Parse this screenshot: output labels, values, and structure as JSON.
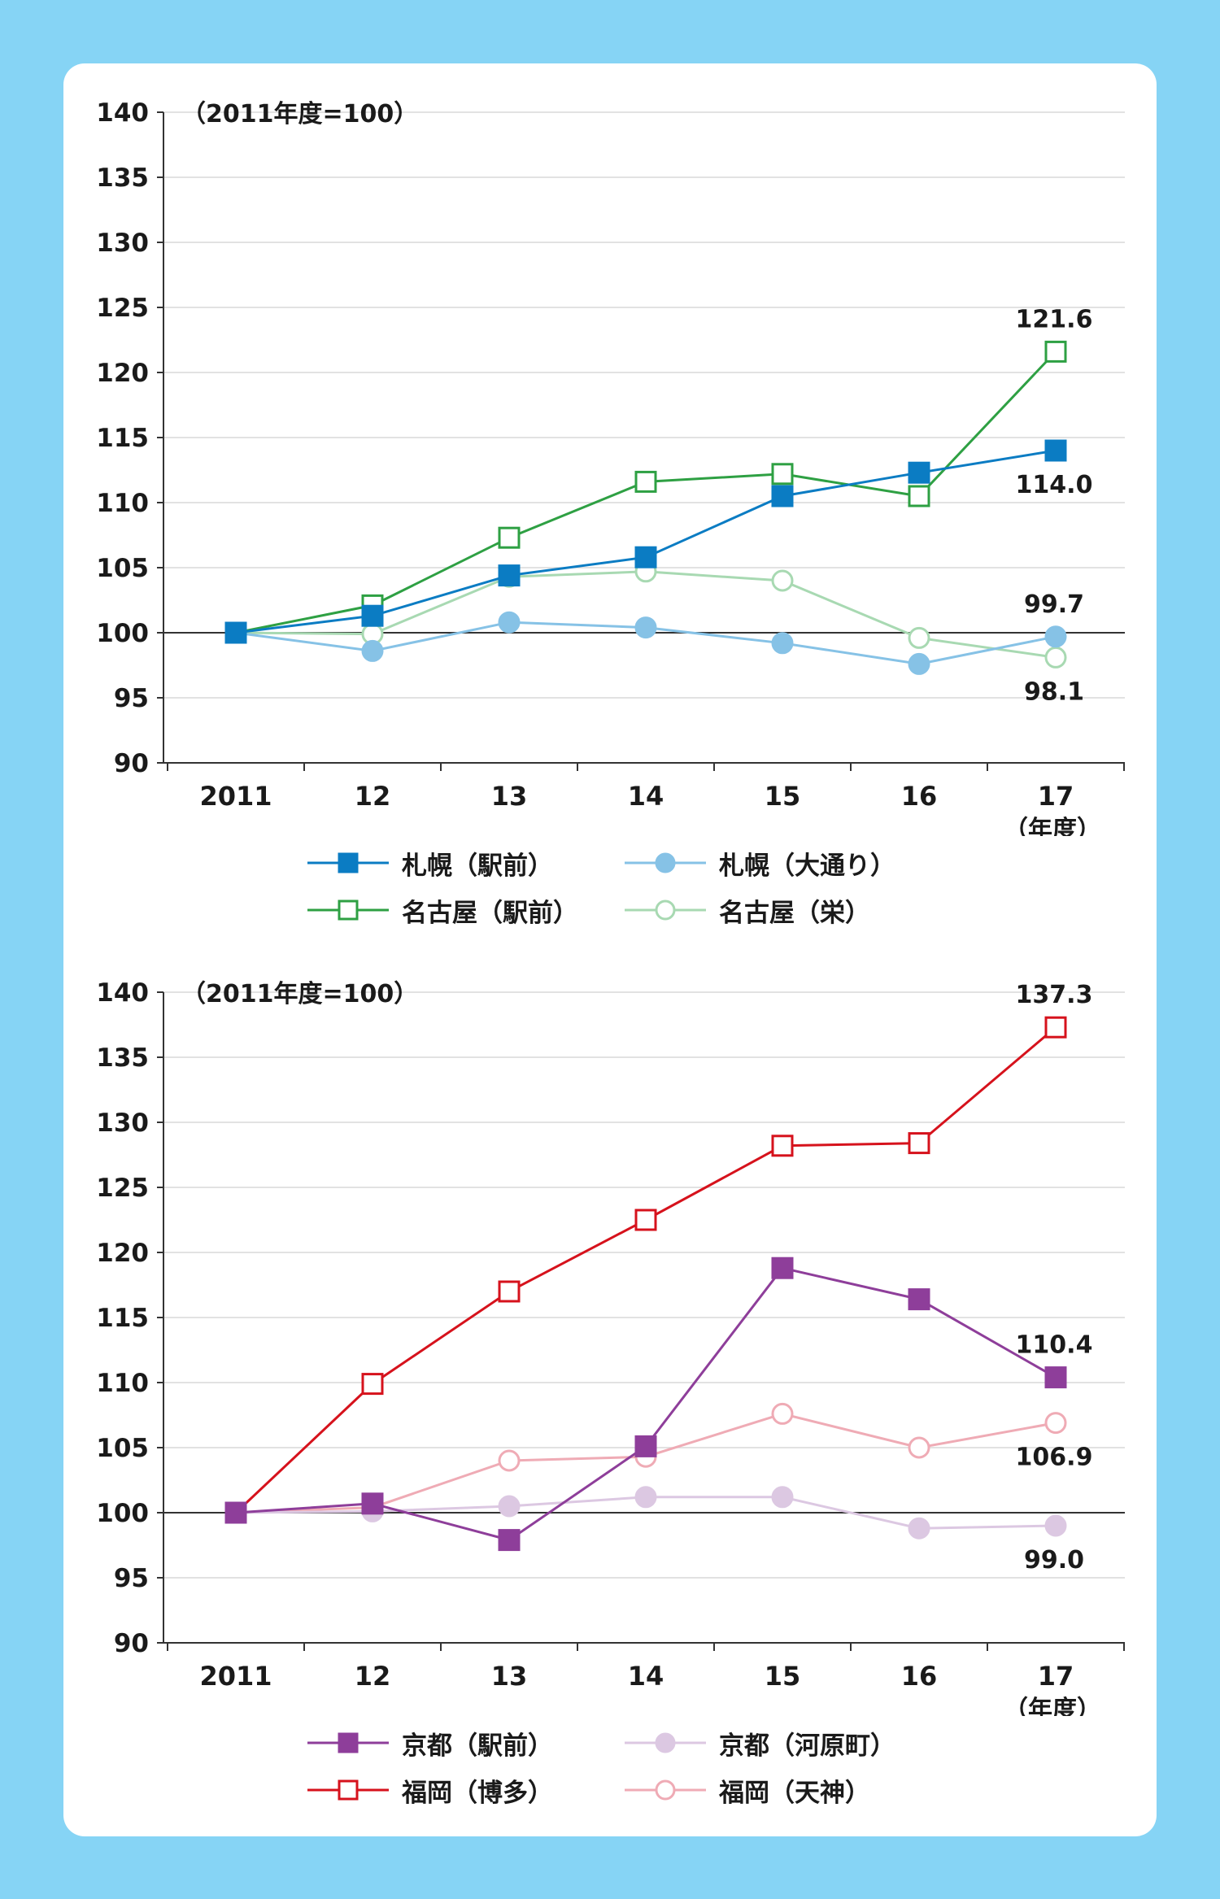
{
  "chart_data": [
    {
      "type": "line",
      "title": "",
      "unit_note": "（2011年度=100）",
      "x_unit_label": "（年度）",
      "categories": [
        "2011",
        "12",
        "13",
        "14",
        "15",
        "16",
        "17"
      ],
      "yticks": [
        "140",
        "135",
        "130",
        "125",
        "120",
        "115",
        "110",
        "105",
        "100",
        "95",
        "90"
      ],
      "ylim": [
        90,
        140
      ],
      "grid": true,
      "series": [
        {
          "name": "札幌（駅前）",
          "color": "#0b7cc3",
          "marker": "square",
          "filled": true,
          "values": [
            100,
            101.3,
            104.4,
            105.8,
            110.5,
            112.3,
            114.0
          ]
        },
        {
          "name": "札幌（大通り）",
          "color": "#86c2e6",
          "marker": "circle",
          "filled": true,
          "values": [
            100,
            98.6,
            100.8,
            100.4,
            99.2,
            97.6,
            99.7
          ]
        },
        {
          "name": "名古屋（駅前）",
          "color": "#2ea043",
          "marker": "square",
          "filled": false,
          "values": [
            100,
            102.1,
            107.3,
            111.6,
            112.2,
            110.5,
            121.6
          ]
        },
        {
          "name": "名古屋（栄）",
          "color": "#a8d9b2",
          "marker": "circle",
          "filled": false,
          "values": [
            100,
            99.9,
            104.3,
            104.7,
            104.0,
            99.6,
            98.1
          ]
        }
      ],
      "data_labels": [
        {
          "series": 2,
          "point": 6,
          "text": "121.6",
          "pos": "above"
        },
        {
          "series": 0,
          "point": 6,
          "text": "114.0",
          "pos": "below"
        },
        {
          "series": 1,
          "point": 6,
          "text": "99.7",
          "pos": "above"
        },
        {
          "series": 3,
          "point": 6,
          "text": "98.1",
          "pos": "below"
        }
      ]
    },
    {
      "type": "line",
      "title": "",
      "unit_note": "（2011年度=100）",
      "x_unit_label": "（年度）",
      "categories": [
        "2011",
        "12",
        "13",
        "14",
        "15",
        "16",
        "17"
      ],
      "yticks": [
        "140",
        "135",
        "130",
        "125",
        "120",
        "115",
        "110",
        "105",
        "100",
        "95",
        "90"
      ],
      "ylim": [
        90,
        140
      ],
      "grid": true,
      "series": [
        {
          "name": "京都（駅前）",
          "color": "#8e3e9a",
          "marker": "square",
          "filled": true,
          "values": [
            100,
            100.7,
            97.9,
            105.1,
            118.8,
            116.4,
            110.4
          ]
        },
        {
          "name": "京都（河原町）",
          "color": "#dcc8e2",
          "marker": "circle",
          "filled": true,
          "values": [
            100,
            100.1,
            100.5,
            101.2,
            101.2,
            98.8,
            99.0
          ]
        },
        {
          "name": "福岡（博多）",
          "color": "#d6121c",
          "marker": "square",
          "filled": false,
          "values": [
            100,
            109.9,
            117.0,
            122.5,
            128.2,
            128.4,
            137.3
          ]
        },
        {
          "name": "福岡（天神）",
          "color": "#efabb5",
          "marker": "circle",
          "filled": false,
          "values": [
            100,
            100.4,
            104.0,
            104.3,
            107.6,
            105.0,
            106.9
          ]
        }
      ],
      "data_labels": [
        {
          "series": 2,
          "point": 6,
          "text": "137.3",
          "pos": "above"
        },
        {
          "series": 0,
          "point": 6,
          "text": "110.4",
          "pos": "above"
        },
        {
          "series": 3,
          "point": 6,
          "text": "106.9",
          "pos": "below"
        },
        {
          "series": 1,
          "point": 6,
          "text": "99.0",
          "pos": "below"
        }
      ]
    }
  ]
}
